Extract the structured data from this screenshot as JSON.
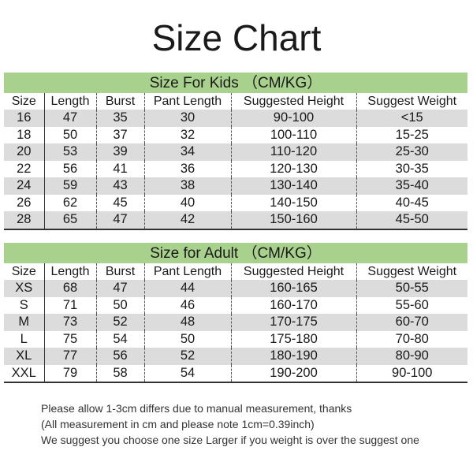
{
  "title": "Size Chart",
  "columns": [
    "Size",
    "Length",
    "Burst",
    "Pant Length",
    "Suggested Height",
    "Suggest Weight"
  ],
  "kids": {
    "heading": "Size For Kids （CM/KG）",
    "rows": [
      [
        "16",
        "47",
        "35",
        "30",
        "90-100",
        "<15"
      ],
      [
        "18",
        "50",
        "37",
        "32",
        "100-110",
        "15-25"
      ],
      [
        "20",
        "53",
        "39",
        "34",
        "110-120",
        "25-30"
      ],
      [
        "22",
        "56",
        "41",
        "36",
        "120-130",
        "30-35"
      ],
      [
        "24",
        "59",
        "43",
        "38",
        "130-140",
        "35-40"
      ],
      [
        "26",
        "62",
        "45",
        "40",
        "140-150",
        "40-45"
      ],
      [
        "28",
        "65",
        "47",
        "42",
        "150-160",
        "45-50"
      ]
    ]
  },
  "adult": {
    "heading": "Size for Adult （CM/KG）",
    "rows": [
      [
        "XS",
        "68",
        "47",
        "44",
        "160-165",
        "50-55"
      ],
      [
        "S",
        "71",
        "50",
        "46",
        "160-170",
        "55-60"
      ],
      [
        "M",
        "73",
        "52",
        "48",
        "170-175",
        "60-70"
      ],
      [
        "L",
        "75",
        "54",
        "50",
        "175-180",
        "70-80"
      ],
      [
        "XL",
        "77",
        "56",
        "52",
        "180-190",
        "80-90"
      ],
      [
        "XXL",
        "79",
        "58",
        "54",
        "190-200",
        "90-100"
      ]
    ]
  },
  "notes": [
    "Please allow 1-3cm differs due to manual measurement, thanks",
    "(All measurement in cm and please note 1cm=0.39inch)",
    "We suggest you choose one size Larger if you weight is over the suggest one"
  ],
  "colors": {
    "banner": "#a9d18e",
    "stripe": "#dcdcdc"
  }
}
